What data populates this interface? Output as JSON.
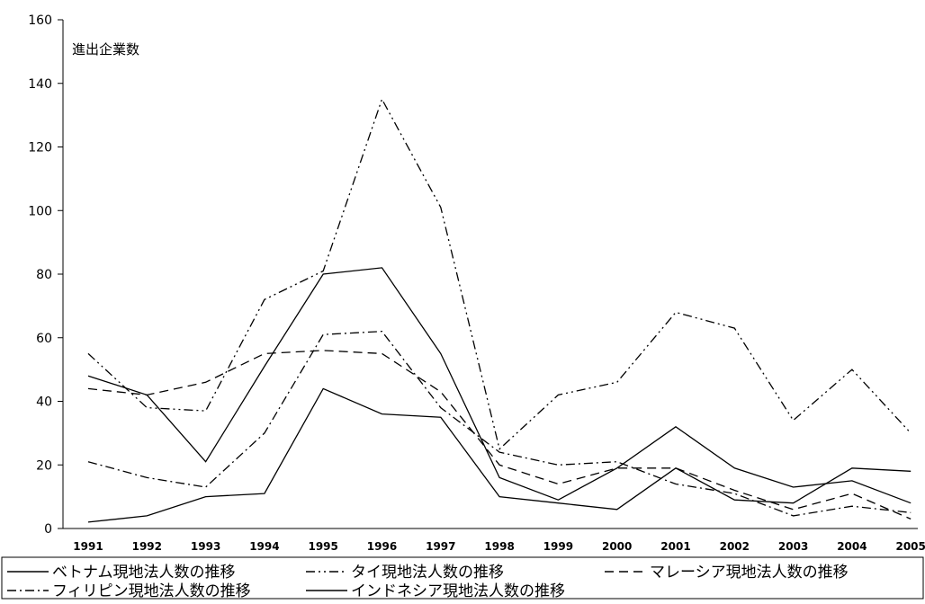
{
  "chart_data": {
    "type": "line",
    "ylabel": "進出企業数",
    "ylim": [
      0,
      160
    ],
    "yticks": [
      0,
      20,
      40,
      60,
      80,
      100,
      120,
      140,
      160
    ],
    "categories": [
      "1991",
      "1992",
      "1993",
      "1994",
      "1995",
      "1996",
      "1997",
      "1998",
      "1999",
      "2000",
      "2001",
      "2002",
      "2003",
      "2004",
      "2005"
    ],
    "grid": false,
    "legend_position": "bottom",
    "series": [
      {
        "name": "ベトナム現地法人数の推移",
        "dash": "solid",
        "color": "#000000",
        "values": [
          48,
          42,
          21,
          51,
          80,
          82,
          55,
          16,
          9,
          19,
          32,
          19,
          13,
          15,
          8
        ]
      },
      {
        "name": "タイ現地法人数の推移",
        "dash": "dash-dot-dot",
        "color": "#000000",
        "values": [
          55,
          38,
          37,
          72,
          81,
          135,
          101,
          25,
          42,
          46,
          68,
          63,
          34,
          50,
          30
        ]
      },
      {
        "name": "マレーシア現地法人数の推移",
        "dash": "dash",
        "color": "#000000",
        "values": [
          44,
          42,
          46,
          55,
          56,
          55,
          43,
          20,
          14,
          19,
          19,
          12,
          6,
          11,
          3
        ]
      },
      {
        "name": "フィリピン現地法人数の推移",
        "dash": "dash-dot",
        "color": "#000000",
        "values": [
          21,
          16,
          13,
          30,
          61,
          62,
          38,
          24,
          20,
          21,
          14,
          11,
          4,
          7,
          5
        ]
      },
      {
        "name": "インドネシア現地法人数の推移",
        "dash": "solid",
        "color": "#000000",
        "values": [
          2,
          4,
          10,
          11,
          44,
          36,
          35,
          10,
          8,
          6,
          19,
          9,
          8,
          19,
          18
        ]
      }
    ]
  }
}
